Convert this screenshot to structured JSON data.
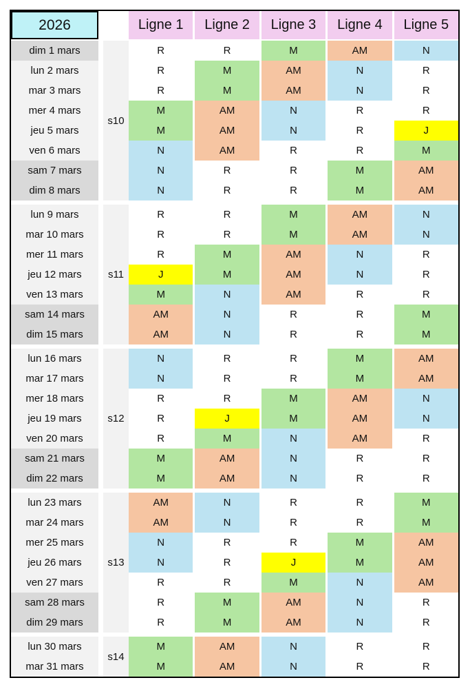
{
  "title": {
    "year": "2026"
  },
  "columns": [
    "Ligne 1",
    "Ligne 2",
    "Ligne 3",
    "Ligne 4",
    "Ligne 5"
  ],
  "colors": {
    "year_bg": "#BFF2F7",
    "ligne_header_bg": "#F2CDEF",
    "weekday_label_bg": "#F2F2F2",
    "weekend_label_bg": "#D9D9D9",
    "week_col_bg": "#F2F2F2",
    "border": "#000000"
  },
  "shift_colors": {
    "R": "#FFFFFF",
    "M": "#B3E6A1",
    "AM": "#F6C5A2",
    "N": "#BDE3F2",
    "J": "#FFFF00"
  },
  "weeks": [
    {
      "label": "s10",
      "days": [
        {
          "date": "dim 1 mars",
          "weekend": true,
          "shifts": [
            "R",
            "R",
            "M",
            "AM",
            "N"
          ]
        },
        {
          "date": "lun 2 mars",
          "weekend": false,
          "shifts": [
            "R",
            "M",
            "AM",
            "N",
            "R"
          ]
        },
        {
          "date": "mar 3 mars",
          "weekend": false,
          "shifts": [
            "R",
            "M",
            "AM",
            "N",
            "R"
          ]
        },
        {
          "date": "mer 4 mars",
          "weekend": false,
          "shifts": [
            "M",
            "AM",
            "N",
            "R",
            "R"
          ]
        },
        {
          "date": "jeu 5 mars",
          "weekend": false,
          "shifts": [
            "M",
            "AM",
            "N",
            "R",
            "J"
          ]
        },
        {
          "date": "ven 6 mars",
          "weekend": false,
          "shifts": [
            "N",
            "AM",
            "R",
            "R",
            "M"
          ]
        },
        {
          "date": "sam 7 mars",
          "weekend": true,
          "shifts": [
            "N",
            "R",
            "R",
            "M",
            "AM"
          ]
        },
        {
          "date": "dim 8 mars",
          "weekend": true,
          "shifts": [
            "N",
            "R",
            "R",
            "M",
            "AM"
          ]
        }
      ]
    },
    {
      "label": "s11",
      "days": [
        {
          "date": "lun 9 mars",
          "weekend": false,
          "shifts": [
            "R",
            "R",
            "M",
            "AM",
            "N"
          ]
        },
        {
          "date": "mar 10 mars",
          "weekend": false,
          "shifts": [
            "R",
            "R",
            "M",
            "AM",
            "N"
          ]
        },
        {
          "date": "mer 11 mars",
          "weekend": false,
          "shifts": [
            "R",
            "M",
            "AM",
            "N",
            "R"
          ]
        },
        {
          "date": "jeu 12 mars",
          "weekend": false,
          "shifts": [
            "J",
            "M",
            "AM",
            "N",
            "R"
          ]
        },
        {
          "date": "ven 13 mars",
          "weekend": false,
          "shifts": [
            "M",
            "N",
            "AM",
            "R",
            "R"
          ]
        },
        {
          "date": "sam 14 mars",
          "weekend": true,
          "shifts": [
            "AM",
            "N",
            "R",
            "R",
            "M"
          ]
        },
        {
          "date": "dim 15 mars",
          "weekend": true,
          "shifts": [
            "AM",
            "N",
            "R",
            "R",
            "M"
          ]
        }
      ]
    },
    {
      "label": "s12",
      "days": [
        {
          "date": "lun 16 mars",
          "weekend": false,
          "shifts": [
            "N",
            "R",
            "R",
            "M",
            "AM"
          ]
        },
        {
          "date": "mar 17 mars",
          "weekend": false,
          "shifts": [
            "N",
            "R",
            "R",
            "M",
            "AM"
          ]
        },
        {
          "date": "mer 18 mars",
          "weekend": false,
          "shifts": [
            "R",
            "R",
            "M",
            "AM",
            "N"
          ]
        },
        {
          "date": "jeu 19 mars",
          "weekend": false,
          "shifts": [
            "R",
            "J",
            "M",
            "AM",
            "N"
          ]
        },
        {
          "date": "ven 20 mars",
          "weekend": false,
          "shifts": [
            "R",
            "M",
            "N",
            "AM",
            "R"
          ]
        },
        {
          "date": "sam 21 mars",
          "weekend": true,
          "shifts": [
            "M",
            "AM",
            "N",
            "R",
            "R"
          ]
        },
        {
          "date": "dim 22 mars",
          "weekend": true,
          "shifts": [
            "M",
            "AM",
            "N",
            "R",
            "R"
          ]
        }
      ]
    },
    {
      "label": "s13",
      "days": [
        {
          "date": "lun 23 mars",
          "weekend": false,
          "shifts": [
            "AM",
            "N",
            "R",
            "R",
            "M"
          ]
        },
        {
          "date": "mar 24 mars",
          "weekend": false,
          "shifts": [
            "AM",
            "N",
            "R",
            "R",
            "M"
          ]
        },
        {
          "date": "mer 25 mars",
          "weekend": false,
          "shifts": [
            "N",
            "R",
            "R",
            "M",
            "AM"
          ]
        },
        {
          "date": "jeu 26 mars",
          "weekend": false,
          "shifts": [
            "N",
            "R",
            "J",
            "M",
            "AM"
          ]
        },
        {
          "date": "ven 27 mars",
          "weekend": false,
          "shifts": [
            "R",
            "R",
            "M",
            "N",
            "AM"
          ]
        },
        {
          "date": "sam 28 mars",
          "weekend": true,
          "shifts": [
            "R",
            "M",
            "AM",
            "N",
            "R"
          ]
        },
        {
          "date": "dim 29 mars",
          "weekend": true,
          "shifts": [
            "R",
            "M",
            "AM",
            "N",
            "R"
          ]
        }
      ]
    },
    {
      "label": "s14",
      "days": [
        {
          "date": "lun 30 mars",
          "weekend": false,
          "shifts": [
            "M",
            "AM",
            "N",
            "R",
            "R"
          ]
        },
        {
          "date": "mar 31 mars",
          "weekend": false,
          "shifts": [
            "M",
            "AM",
            "N",
            "R",
            "R"
          ]
        }
      ]
    }
  ]
}
